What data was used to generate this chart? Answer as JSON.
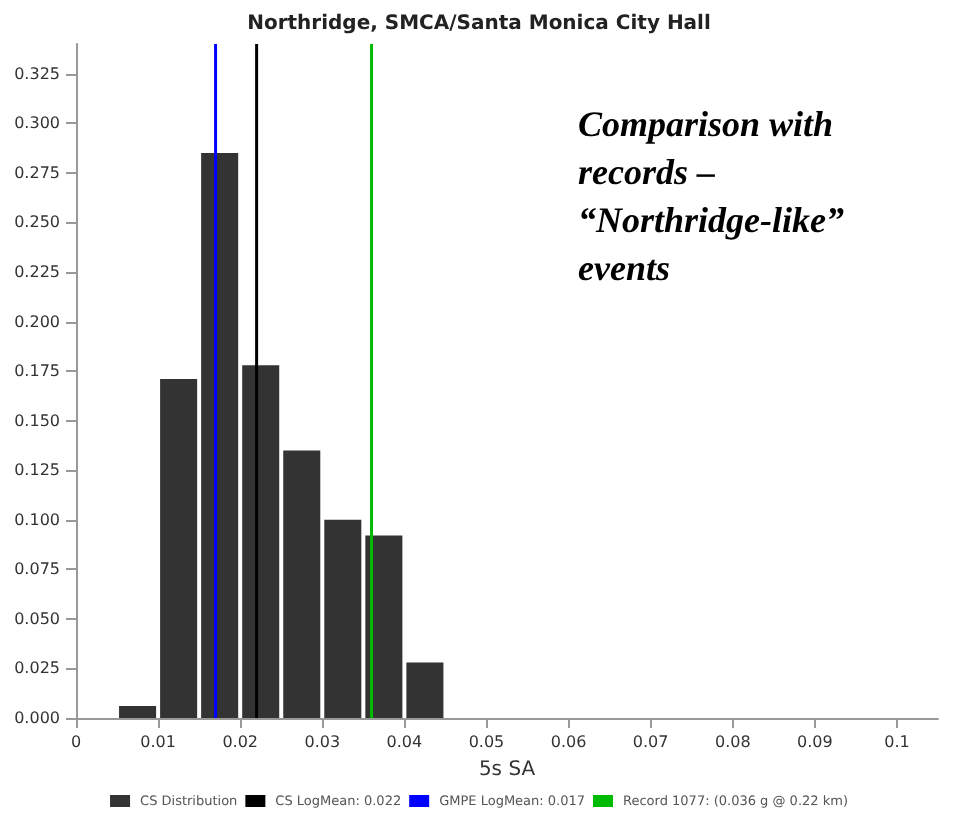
{
  "chart_data": {
    "type": "histogram",
    "title": "Northridge, SMCA/Santa Monica City Hall",
    "xlabel": "5s SA",
    "series": [
      {
        "name": "CS Distribution",
        "color": "#333333",
        "values": [
          0.006,
          0.171,
          0.285,
          0.178,
          0.135,
          0.1,
          0.092,
          0.028
        ]
      }
    ],
    "bins": [
      0.005,
      0.01,
      0.015,
      0.02,
      0.025,
      0.03,
      0.035,
      0.04,
      0.045
    ],
    "xlim": [
      0,
      0.105
    ],
    "xticks": [
      0,
      0.01,
      0.02,
      0.03,
      0.04,
      0.05,
      0.06,
      0.07,
      0.08,
      0.09,
      0.1
    ],
    "ylim": [
      0,
      0.34
    ],
    "yticks": [
      {
        "value": 0,
        "label": "0.000"
      },
      {
        "value": 0.025,
        "label": "0.025"
      },
      {
        "value": 0.05,
        "label": "0.050"
      },
      {
        "value": 0.075,
        "label": "0.075"
      },
      {
        "value": 0.1,
        "label": "0.100"
      },
      {
        "value": 0.125,
        "label": "0.125"
      },
      {
        "value": 0.15,
        "label": "0.150"
      },
      {
        "value": 0.175,
        "label": "0.175"
      },
      {
        "value": 0.2,
        "label": "0.200"
      },
      {
        "value": 0.225,
        "label": "0.225"
      },
      {
        "value": 0.25,
        "label": "0.250"
      },
      {
        "value": 0.275,
        "label": "0.275"
      },
      {
        "value": 0.3,
        "label": "0.300"
      },
      {
        "value": 0.325,
        "label": "0.325"
      }
    ],
    "ref_lines": [
      {
        "axis": "x",
        "value": 0.022,
        "label": "CS LogMean: 0.022",
        "color": "#000000"
      },
      {
        "axis": "x",
        "value": 0.017,
        "label": "GMPE LogMean: 0.017",
        "color": "#0000ff"
      },
      {
        "axis": "x",
        "value": 0.036,
        "label": "Record 1077: (0.036 g @ 0.22 km)",
        "color": "#00bb00"
      }
    ],
    "annotations": [
      "Comparison with records – “Northridge-like” events"
    ],
    "legend": "bottom",
    "grid": false
  }
}
